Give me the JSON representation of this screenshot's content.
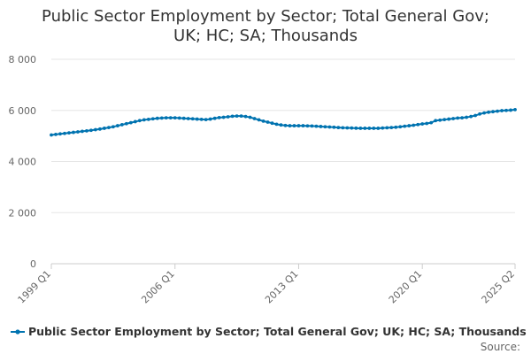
{
  "chart_data": {
    "type": "line",
    "title_lines": [
      "Public Sector Employment by Sector; Total General Gov;",
      "UK; HC; SA; Thousands"
    ],
    "xlabel": "",
    "ylabel": "",
    "ylim": [
      0,
      8000
    ],
    "y_ticks": [
      0,
      2000,
      4000,
      6000,
      8000
    ],
    "y_tick_labels": [
      "0",
      "2 000",
      "4 000",
      "6 000",
      "8 000"
    ],
    "x_tick_labels": [
      "1999 Q1",
      "2006 Q1",
      "2013 Q1",
      "2020 Q1",
      "2025 Q2"
    ],
    "x_tick_positions": [
      "1999 Q1",
      "2006 Q1",
      "2013 Q1",
      "2020 Q1",
      "2025 Q2"
    ],
    "grid": true,
    "legend_position": "bottom",
    "series": [
      {
        "name": "Public Sector Employment by Sector; Total General Gov; UK; HC; SA; Thousands",
        "color": "#0073b0",
        "x": [
          "1999 Q1",
          "1999 Q2",
          "1999 Q3",
          "1999 Q4",
          "2000 Q1",
          "2000 Q2",
          "2000 Q3",
          "2000 Q4",
          "2001 Q1",
          "2001 Q2",
          "2001 Q3",
          "2001 Q4",
          "2002 Q1",
          "2002 Q2",
          "2002 Q3",
          "2002 Q4",
          "2003 Q1",
          "2003 Q2",
          "2003 Q3",
          "2003 Q4",
          "2004 Q1",
          "2004 Q2",
          "2004 Q3",
          "2004 Q4",
          "2005 Q1",
          "2005 Q2",
          "2005 Q3",
          "2005 Q4",
          "2006 Q1",
          "2006 Q2",
          "2006 Q3",
          "2006 Q4",
          "2007 Q1",
          "2007 Q2",
          "2007 Q3",
          "2007 Q4",
          "2008 Q1",
          "2008 Q2",
          "2008 Q3",
          "2008 Q4",
          "2009 Q1",
          "2009 Q2",
          "2009 Q3",
          "2009 Q4",
          "2010 Q1",
          "2010 Q2",
          "2010 Q3",
          "2010 Q4",
          "2011 Q1",
          "2011 Q2",
          "2011 Q3",
          "2011 Q4",
          "2012 Q1",
          "2012 Q2",
          "2012 Q3",
          "2012 Q4",
          "2013 Q1",
          "2013 Q2",
          "2013 Q3",
          "2013 Q4",
          "2014 Q1",
          "2014 Q2",
          "2014 Q3",
          "2014 Q4",
          "2015 Q1",
          "2015 Q2",
          "2015 Q3",
          "2015 Q4",
          "2016 Q1",
          "2016 Q2",
          "2016 Q3",
          "2016 Q4",
          "2017 Q1",
          "2017 Q2",
          "2017 Q3",
          "2017 Q4",
          "2018 Q1",
          "2018 Q2",
          "2018 Q3",
          "2018 Q4",
          "2019 Q1",
          "2019 Q2",
          "2019 Q3",
          "2019 Q4",
          "2020 Q1",
          "2020 Q2",
          "2020 Q3",
          "2020 Q4",
          "2021 Q1",
          "2021 Q2",
          "2021 Q3",
          "2021 Q4",
          "2022 Q1",
          "2022 Q2",
          "2022 Q3",
          "2022 Q4",
          "2023 Q1",
          "2023 Q2",
          "2023 Q3",
          "2023 Q4",
          "2024 Q1",
          "2024 Q2",
          "2024 Q3",
          "2024 Q4",
          "2025 Q1",
          "2025 Q2"
        ],
        "values": [
          5040,
          5060,
          5080,
          5100,
          5120,
          5140,
          5160,
          5180,
          5200,
          5220,
          5245,
          5270,
          5300,
          5330,
          5360,
          5400,
          5440,
          5480,
          5520,
          5560,
          5600,
          5630,
          5650,
          5670,
          5690,
          5700,
          5710,
          5710,
          5710,
          5700,
          5690,
          5680,
          5670,
          5660,
          5650,
          5640,
          5660,
          5690,
          5720,
          5730,
          5750,
          5770,
          5780,
          5780,
          5760,
          5730,
          5680,
          5630,
          5580,
          5540,
          5500,
          5460,
          5430,
          5410,
          5400,
          5400,
          5400,
          5400,
          5395,
          5390,
          5380,
          5370,
          5360,
          5350,
          5340,
          5330,
          5320,
          5315,
          5310,
          5305,
          5300,
          5300,
          5300,
          5300,
          5300,
          5310,
          5320,
          5330,
          5340,
          5360,
          5380,
          5400,
          5420,
          5445,
          5470,
          5490,
          5520,
          5600,
          5620,
          5640,
          5660,
          5680,
          5700,
          5710,
          5730,
          5760,
          5800,
          5860,
          5900,
          5930,
          5950,
          5970,
          5990,
          6000,
          6010,
          6030
        ]
      }
    ],
    "source_label": "Source:"
  }
}
